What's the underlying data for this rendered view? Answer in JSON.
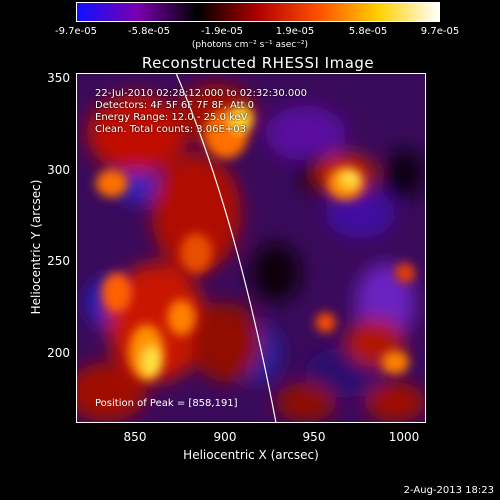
{
  "colorbar": {
    "ticks": [
      "-9.7e-05",
      "-5.8e-05",
      "-1.9e-05",
      "1.9e-05",
      "5.8e-05",
      "9.7e-05"
    ],
    "units": "(photons cm⁻² s⁻¹ asec⁻²)",
    "colors": [
      "#1010ff",
      "#7a00b0",
      "#000000",
      "#b00000",
      "#ff5000",
      "#ffd000",
      "#ffffff"
    ]
  },
  "title": "Reconstructed RHESSI Image",
  "info_lines": [
    "22-Jul-2010 02:28:12.000 to 02:32:30.000",
    "Detectors: 4F 5F 6F 7F 8F, Att 0",
    "Energy Range: 12.0 - 25.0 keV",
    "Clean.  Total counts: 3.06E+03"
  ],
  "peak_text": "Position of Peak = [858,191]",
  "axes": {
    "xlabel": "Heliocentric X (arcsec)",
    "ylabel": "Heliocentric Y (arcsec)",
    "xticks": [
      "850",
      "900",
      "950",
      "1000"
    ],
    "yticks": [
      "350",
      "300",
      "250",
      "200"
    ],
    "xrange": [
      818,
      1013
    ],
    "yrange": [
      158,
      353
    ]
  },
  "footer_date": "2-Aug-2013 18:23"
}
